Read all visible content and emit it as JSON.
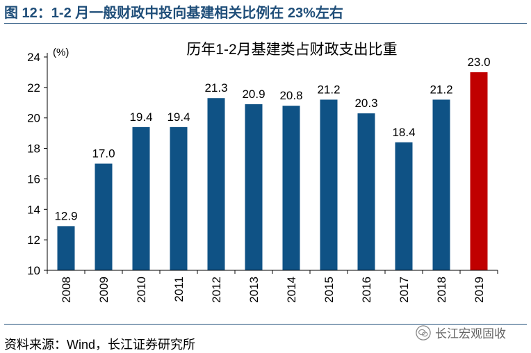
{
  "figure": {
    "title": "图 12：1-2 月一般财政中投向基建相关比例在 23%左右",
    "source": "资料来源：Wind，长江证券研究所",
    "watermark": "长江宏观固收",
    "watermark_icon": "wechat-icon"
  },
  "chart_data": {
    "type": "bar",
    "title": "历年1-2月基建类占财政支出比重",
    "ylabel": "(%)",
    "xlabel": "",
    "categories": [
      "2008",
      "2009",
      "2010",
      "2011",
      "2012",
      "2013",
      "2014",
      "2015",
      "2016",
      "2017",
      "2018",
      "2019"
    ],
    "values": [
      12.9,
      17.0,
      19.4,
      19.4,
      21.3,
      20.9,
      20.8,
      21.2,
      20.3,
      18.4,
      21.2,
      23.0
    ],
    "value_labels": [
      "12.9",
      "17.0",
      "19.4",
      "19.4",
      "21.3",
      "20.9",
      "20.8",
      "21.2",
      "20.3",
      "18.4",
      "21.2",
      "23.0"
    ],
    "ylim": [
      10,
      24
    ],
    "yticks": [
      10,
      12,
      14,
      16,
      18,
      20,
      22,
      24
    ],
    "grid": false,
    "colors": {
      "default": "#0f5285",
      "highlight": "#c00000"
    },
    "highlight_index": 11
  }
}
